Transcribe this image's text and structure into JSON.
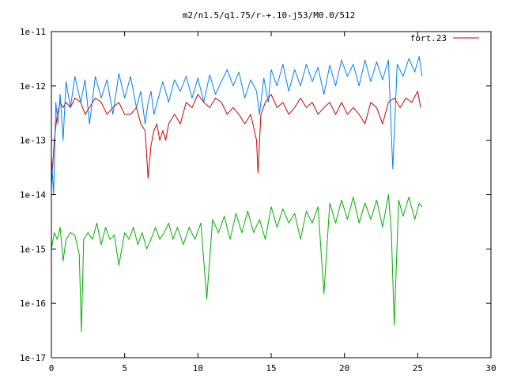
{
  "chart_data": {
    "type": "line",
    "title": "m2/n1.5/q1.75/r-+.10-j53/M0.0/512",
    "xlabel": "",
    "ylabel": "",
    "xlim": [
      0,
      30
    ],
    "ylim": [
      1e-17,
      1e-11
    ],
    "yscale": "log",
    "grid": false,
    "legend_position": "top-right",
    "x_ticks": [
      "0",
      "5",
      "10",
      "15",
      "20",
      "25",
      "30"
    ],
    "y_ticks": [
      "1e-11",
      "1e-12",
      "1e-13",
      "1e-14",
      "1e-15",
      "1e-16",
      "1e-17"
    ],
    "series": [
      {
        "name": "fort.23",
        "color": "#cc0000",
        "x": [
          0,
          0.2,
          0.4,
          0.6,
          0.8,
          1,
          1.3,
          1.6,
          2,
          2.3,
          2.6,
          3,
          3.4,
          3.8,
          4.2,
          4.6,
          5,
          5.4,
          5.8,
          6.1,
          6.4,
          6.6,
          6.8,
          7,
          7.2,
          7.4,
          7.6,
          7.8,
          8,
          8.4,
          8.8,
          9.2,
          9.6,
          10,
          10.4,
          10.8,
          11.2,
          11.6,
          12,
          12.4,
          12.8,
          13.2,
          13.6,
          14,
          14.1,
          14.3,
          14.6,
          15,
          15.4,
          15.8,
          16.2,
          16.6,
          17,
          17.4,
          17.8,
          18.2,
          18.6,
          19,
          19.4,
          19.8,
          20.2,
          20.6,
          21,
          21.4,
          21.8,
          22.2,
          22.6,
          23,
          23.4,
          23.8,
          24.2,
          24.6,
          25,
          25.2
        ],
        "y": [
          1.5e-14,
          1e-13,
          3e-13,
          5e-13,
          4e-13,
          5e-13,
          4e-13,
          6e-13,
          5e-13,
          3e-13,
          4e-13,
          6e-13,
          5e-13,
          3e-13,
          4e-13,
          5e-13,
          3e-13,
          3e-13,
          4e-13,
          2e-13,
          1.5e-13,
          2e-14,
          8e-14,
          1.5e-13,
          2e-13,
          1e-13,
          1.5e-13,
          1e-13,
          2e-13,
          3e-13,
          2e-13,
          5e-13,
          4e-13,
          7e-13,
          5e-13,
          4e-13,
          6e-13,
          5e-13,
          3e-13,
          4e-13,
          3e-13,
          2e-13,
          3e-13,
          1e-13,
          2.5e-14,
          3e-13,
          5e-13,
          7e-13,
          4e-13,
          5e-13,
          3e-13,
          4e-13,
          6e-13,
          4e-13,
          5e-13,
          3e-13,
          4e-13,
          5e-13,
          3e-13,
          5e-13,
          3e-13,
          4e-13,
          3e-13,
          2e-13,
          5e-13,
          4e-13,
          2e-13,
          5e-13,
          6e-13,
          4e-13,
          6e-13,
          5e-13,
          8e-13,
          4e-13
        ]
      },
      {
        "name": "",
        "color": "#0080ff",
        "x": [
          0,
          0.15,
          0.3,
          0.45,
          0.6,
          0.8,
          1,
          1.3,
          1.6,
          2,
          2.3,
          2.6,
          3,
          3.4,
          3.8,
          4.2,
          4.6,
          5,
          5.4,
          5.8,
          6.1,
          6.4,
          6.6,
          6.8,
          7,
          7.3,
          7.6,
          8,
          8.4,
          8.8,
          9.2,
          9.6,
          10,
          10.4,
          10.8,
          11.2,
          11.6,
          12,
          12.4,
          12.8,
          13.2,
          13.6,
          14,
          14.2,
          14.5,
          14.8,
          15,
          15.4,
          15.8,
          16.2,
          16.6,
          17,
          17.4,
          17.8,
          18.2,
          18.6,
          19,
          19.4,
          19.8,
          20.2,
          20.6,
          21,
          21.4,
          21.8,
          22.2,
          22.6,
          23,
          23.3,
          23.6,
          24,
          24.4,
          24.8,
          25.1,
          25.3
        ],
        "y": [
          5e-14,
          1e-14,
          5e-13,
          2e-13,
          7e-13,
          1e-13,
          1.2e-12,
          4e-13,
          1.5e-12,
          5e-13,
          1.3e-12,
          2e-13,
          1.5e-12,
          6e-13,
          1.3e-12,
          3e-13,
          1.7e-12,
          6e-13,
          1.5e-12,
          4e-13,
          8e-13,
          2e-13,
          5e-13,
          8e-13,
          3e-13,
          6e-13,
          1.2e-12,
          5e-13,
          1.3e-12,
          8e-13,
          1.5e-12,
          6e-13,
          1.4e-12,
          5e-13,
          1.6e-12,
          7e-13,
          1.2e-12,
          2e-12,
          1e-12,
          1.8e-12,
          6e-13,
          1.3e-12,
          8e-13,
          3e-13,
          1.4e-12,
          5e-13,
          2e-12,
          1e-12,
          2.5e-12,
          8e-13,
          2e-12,
          1e-12,
          2.5e-12,
          1.2e-12,
          2.2e-12,
          7e-13,
          2.4e-12,
          1e-12,
          3e-12,
          1.5e-12,
          2.5e-12,
          1e-12,
          3e-12,
          1.2e-12,
          2.8e-12,
          1.3e-12,
          3e-12,
          3e-14,
          2.5e-12,
          1.5e-12,
          3.2e-12,
          1.8e-12,
          3.5e-12,
          1.5e-12
        ]
      },
      {
        "name": "",
        "color": "#00b000",
        "x": [
          0,
          0.2,
          0.4,
          0.6,
          0.8,
          1,
          1.3,
          1.6,
          1.9,
          2.05,
          2.2,
          2.5,
          2.8,
          3.1,
          3.4,
          3.7,
          4,
          4.3,
          4.6,
          5,
          5.3,
          5.6,
          5.9,
          6.2,
          6.5,
          6.8,
          7.1,
          7.4,
          7.7,
          8,
          8.3,
          8.6,
          9,
          9.4,
          9.8,
          10.2,
          10.6,
          11,
          11.4,
          11.8,
          12.2,
          12.6,
          13,
          13.4,
          13.8,
          14.2,
          14.6,
          15,
          15.4,
          15.8,
          16.2,
          16.6,
          17,
          17.4,
          17.8,
          18.2,
          18.6,
          19,
          19.4,
          19.8,
          20.2,
          20.6,
          21,
          21.4,
          21.8,
          22.2,
          22.6,
          23,
          23.2,
          23.4,
          23.7,
          24,
          24.4,
          24.8,
          25.1,
          25.3
        ],
        "y": [
          1e-15,
          2e-15,
          1.5e-15,
          2.5e-15,
          6e-16,
          1.5e-15,
          2e-15,
          1.8e-15,
          8e-16,
          3e-17,
          1.5e-15,
          2e-15,
          1.5e-15,
          3e-15,
          1.2e-15,
          2.5e-15,
          1.5e-15,
          1.8e-15,
          5e-16,
          2e-15,
          1.5e-15,
          2.5e-15,
          1.2e-15,
          2e-15,
          1e-15,
          1.5e-15,
          2.5e-15,
          1.5e-15,
          2e-15,
          3e-15,
          1.5e-15,
          2.5e-15,
          1.2e-15,
          2.5e-15,
          1.5e-15,
          3e-15,
          1.2e-16,
          3.5e-15,
          2e-15,
          4e-15,
          1.5e-15,
          4.5e-15,
          2e-15,
          5e-15,
          2e-15,
          3.5e-15,
          1.5e-15,
          6e-15,
          2.5e-15,
          5.5e-15,
          3e-15,
          4.5e-15,
          1.5e-15,
          5e-15,
          3e-15,
          6e-15,
          1.5e-16,
          7e-15,
          3e-15,
          8e-15,
          3.5e-15,
          9e-15,
          3e-15,
          7e-15,
          3.5e-15,
          8e-15,
          2.5e-15,
          1e-14,
          2e-15,
          4e-17,
          8e-15,
          4e-15,
          9e-15,
          3.5e-15,
          7e-15,
          6e-15
        ]
      }
    ]
  }
}
